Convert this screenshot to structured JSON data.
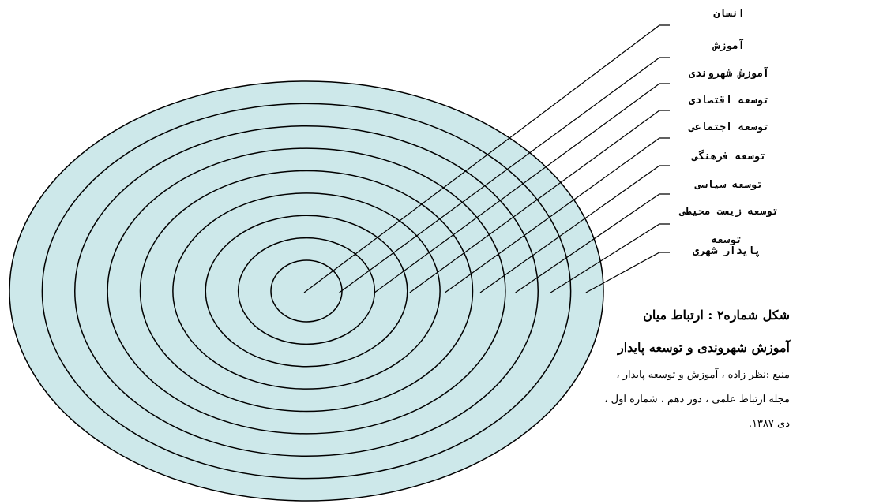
{
  "labels": [
    "انسان",
    "آموزش",
    "آموزش شهروندی",
    "توسعه اقتصادی",
    "توسعه اجتماعی",
    "توسعه فرهنگی",
    "توسعه سیاسی",
    "توسعه زیست محیطی",
    "توسعه پایدار شهری"
  ],
  "caption": {
    "title": [
      "شکل شماره۲ : ارتباط میان",
      "آموزش شهروندی و توسعه پایدار"
    ],
    "source": [
      "منبع :نظر زاده ، آموزش و توسعه پایدار ،",
      "مجله ارتباط علمی ، دور دهم ، شماره اول ،",
      "دی ۱۳۸۷."
    ]
  }
}
